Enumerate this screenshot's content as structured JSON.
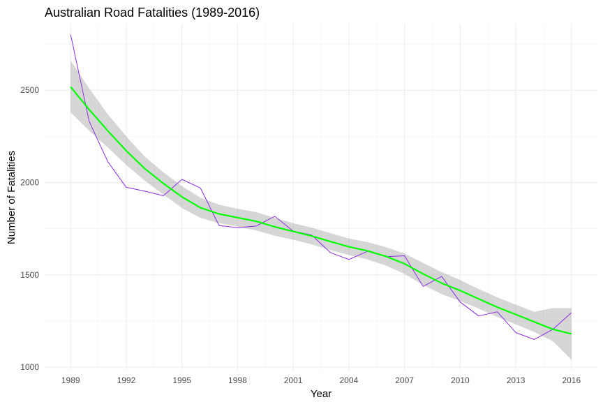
{
  "chart_data": {
    "type": "line",
    "title": "Australian Road Fatalities (1989-2016)",
    "xlabel": "Year",
    "ylabel": "Number of Fatalities",
    "xlim": [
      1987.6,
      2017.4
    ],
    "ylim": [
      985,
      2860
    ],
    "x_ticks": [
      1989,
      1992,
      1995,
      1998,
      2001,
      2004,
      2007,
      2010,
      2013,
      2016
    ],
    "y_ticks": [
      1000,
      1500,
      2000,
      2500
    ],
    "grid": true,
    "legend": "none",
    "series": [
      {
        "kind": "observed",
        "color": "#8a2be2",
        "x": [
          1989,
          1990,
          1991,
          1992,
          1993,
          1994,
          1995,
          1996,
          1997,
          1998,
          1999,
          2000,
          2001,
          2002,
          2003,
          2004,
          2005,
          2006,
          2007,
          2008,
          2009,
          2010,
          2011,
          2012,
          2013,
          2014,
          2015,
          2016
        ],
        "y": [
          2801,
          2331,
          2113,
          1974,
          1953,
          1928,
          2017,
          1970,
          1767,
          1755,
          1764,
          1817,
          1737,
          1715,
          1621,
          1583,
          1627,
          1598,
          1603,
          1437,
          1491,
          1353,
          1277,
          1300,
          1187,
          1150,
          1205,
          1295
        ]
      },
      {
        "kind": "smooth",
        "color": "#00ff00",
        "x": [
          1989,
          1990,
          1991,
          1992,
          1993,
          1994,
          1995,
          1996,
          1997,
          1998,
          1999,
          2000,
          2001,
          2002,
          2003,
          2004,
          2005,
          2006,
          2007,
          2008,
          2009,
          2010,
          2011,
          2012,
          2013,
          2014,
          2015,
          2016
        ],
        "y": [
          2518,
          2395,
          2280,
          2172,
          2075,
          1995,
          1922,
          1863,
          1830,
          1810,
          1790,
          1760,
          1735,
          1710,
          1680,
          1652,
          1630,
          1600,
          1560,
          1505,
          1455,
          1415,
          1370,
          1325,
          1285,
          1245,
          1205,
          1180
        ],
        "band_low": [
          2380,
          2280,
          2190,
          2095,
          2010,
          1935,
          1862,
          1808,
          1780,
          1762,
          1740,
          1712,
          1690,
          1665,
          1634,
          1607,
          1583,
          1550,
          1505,
          1445,
          1395,
          1358,
          1317,
          1272,
          1232,
          1190,
          1140,
          1040
        ],
        "band_high": [
          2660,
          2510,
          2370,
          2250,
          2140,
          2055,
          1980,
          1918,
          1880,
          1858,
          1840,
          1808,
          1780,
          1755,
          1726,
          1697,
          1677,
          1650,
          1615,
          1565,
          1515,
          1472,
          1423,
          1378,
          1338,
          1300,
          1320,
          1320
        ]
      }
    ]
  }
}
